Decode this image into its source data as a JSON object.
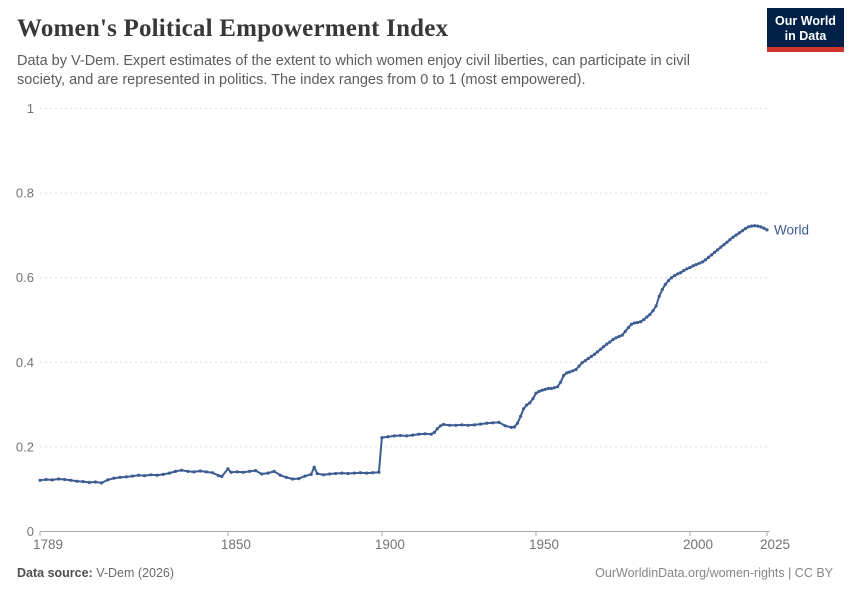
{
  "header": {
    "title": "Women's Political Empowerment Index",
    "subtitle": "Data by V-Dem. Expert estimates of the extent to which women enjoy civil liberties, can participate in civil society, and are represented in politics. The index ranges from 0 to 1 (most empowered).",
    "logo": {
      "line1": "Our World",
      "line2": "in Data"
    }
  },
  "footer": {
    "source_label": "Data source:",
    "source_value": " V-Dem (2026)",
    "attribution": "OurWorldinData.org/women-rights | CC BY"
  },
  "style_colors": {
    "line": "#3d5c92",
    "grid": "#dcdcdc",
    "axis": "#a8a8a8",
    "tick_text": "#737373",
    "logo_bg": "#002147",
    "logo_accent": "#d1342f"
  },
  "chart_data": {
    "type": "line",
    "title": "Women's Political Empowerment Index",
    "xlabel": "",
    "ylabel": "",
    "xlim": [
      1789,
      2025
    ],
    "ylim": [
      0,
      1
    ],
    "x_ticks": [
      1789,
      1850,
      1900,
      1950,
      2000,
      2025
    ],
    "y_ticks": [
      0,
      0.2,
      0.4,
      0.6,
      0.8,
      1
    ],
    "grid": "horizontal-dashed",
    "legend_position": "end-of-line-label",
    "series": [
      {
        "name": "World",
        "points": [
          [
            1789,
            0.121
          ],
          [
            1791,
            0.123
          ],
          [
            1793,
            0.122
          ],
          [
            1795,
            0.124
          ],
          [
            1797,
            0.123
          ],
          [
            1799,
            0.121
          ],
          [
            1801,
            0.119
          ],
          [
            1803,
            0.118
          ],
          [
            1805,
            0.116
          ],
          [
            1807,
            0.117
          ],
          [
            1809,
            0.115
          ],
          [
            1811,
            0.122
          ],
          [
            1813,
            0.126
          ],
          [
            1815,
            0.128
          ],
          [
            1817,
            0.129
          ],
          [
            1819,
            0.131
          ],
          [
            1821,
            0.133
          ],
          [
            1823,
            0.132
          ],
          [
            1825,
            0.134
          ],
          [
            1827,
            0.133
          ],
          [
            1829,
            0.135
          ],
          [
            1831,
            0.138
          ],
          [
            1833,
            0.142
          ],
          [
            1835,
            0.145
          ],
          [
            1837,
            0.142
          ],
          [
            1839,
            0.141
          ],
          [
            1841,
            0.143
          ],
          [
            1843,
            0.141
          ],
          [
            1845,
            0.139
          ],
          [
            1847,
            0.132
          ],
          [
            1848,
            0.13
          ],
          [
            1850,
            0.148
          ],
          [
            1851,
            0.14
          ],
          [
            1853,
            0.141
          ],
          [
            1855,
            0.14
          ],
          [
            1857,
            0.142
          ],
          [
            1859,
            0.144
          ],
          [
            1861,
            0.136
          ],
          [
            1863,
            0.138
          ],
          [
            1865,
            0.142
          ],
          [
            1867,
            0.133
          ],
          [
            1869,
            0.128
          ],
          [
            1871,
            0.124
          ],
          [
            1873,
            0.125
          ],
          [
            1875,
            0.131
          ],
          [
            1877,
            0.135
          ],
          [
            1878,
            0.152
          ],
          [
            1879,
            0.137
          ],
          [
            1881,
            0.134
          ],
          [
            1883,
            0.136
          ],
          [
            1885,
            0.137
          ],
          [
            1887,
            0.138
          ],
          [
            1889,
            0.137
          ],
          [
            1891,
            0.138
          ],
          [
            1893,
            0.139
          ],
          [
            1895,
            0.138
          ],
          [
            1897,
            0.139
          ],
          [
            1899,
            0.14
          ],
          [
            1900,
            0.222
          ],
          [
            1902,
            0.224
          ],
          [
            1904,
            0.226
          ],
          [
            1906,
            0.227
          ],
          [
            1908,
            0.226
          ],
          [
            1910,
            0.228
          ],
          [
            1912,
            0.23
          ],
          [
            1914,
            0.231
          ],
          [
            1916,
            0.23
          ],
          [
            1917,
            0.234
          ],
          [
            1918,
            0.243
          ],
          [
            1919,
            0.25
          ],
          [
            1920,
            0.253
          ],
          [
            1922,
            0.251
          ],
          [
            1924,
            0.251
          ],
          [
            1926,
            0.252
          ],
          [
            1928,
            0.251
          ],
          [
            1930,
            0.252
          ],
          [
            1932,
            0.254
          ],
          [
            1934,
            0.256
          ],
          [
            1936,
            0.257
          ],
          [
            1938,
            0.258
          ],
          [
            1940,
            0.25
          ],
          [
            1942,
            0.246
          ],
          [
            1943,
            0.247
          ],
          [
            1944,
            0.256
          ],
          [
            1945,
            0.272
          ],
          [
            1946,
            0.29
          ],
          [
            1947,
            0.299
          ],
          [
            1948,
            0.304
          ],
          [
            1949,
            0.314
          ],
          [
            1950,
            0.327
          ],
          [
            1951,
            0.331
          ],
          [
            1952,
            0.334
          ],
          [
            1953,
            0.336
          ],
          [
            1954,
            0.338
          ],
          [
            1955,
            0.338
          ],
          [
            1956,
            0.34
          ],
          [
            1957,
            0.342
          ],
          [
            1958,
            0.353
          ],
          [
            1959,
            0.369
          ],
          [
            1960,
            0.375
          ],
          [
            1961,
            0.377
          ],
          [
            1962,
            0.38
          ],
          [
            1963,
            0.383
          ],
          [
            1964,
            0.391
          ],
          [
            1965,
            0.399
          ],
          [
            1966,
            0.404
          ],
          [
            1967,
            0.409
          ],
          [
            1968,
            0.414
          ],
          [
            1969,
            0.419
          ],
          [
            1970,
            0.425
          ],
          [
            1971,
            0.431
          ],
          [
            1972,
            0.437
          ],
          [
            1973,
            0.443
          ],
          [
            1974,
            0.448
          ],
          [
            1975,
            0.454
          ],
          [
            1976,
            0.458
          ],
          [
            1977,
            0.461
          ],
          [
            1978,
            0.464
          ],
          [
            1979,
            0.473
          ],
          [
            1980,
            0.482
          ],
          [
            1981,
            0.49
          ],
          [
            1982,
            0.493
          ],
          [
            1983,
            0.494
          ],
          [
            1984,
            0.496
          ],
          [
            1985,
            0.501
          ],
          [
            1986,
            0.507
          ],
          [
            1987,
            0.513
          ],
          [
            1988,
            0.522
          ],
          [
            1989,
            0.533
          ],
          [
            1990,
            0.556
          ],
          [
            1991,
            0.572
          ],
          [
            1992,
            0.584
          ],
          [
            1993,
            0.593
          ],
          [
            1994,
            0.6
          ],
          [
            1995,
            0.605
          ],
          [
            1996,
            0.609
          ],
          [
            1997,
            0.612
          ],
          [
            1998,
            0.617
          ],
          [
            1999,
            0.621
          ],
          [
            2000,
            0.624
          ],
          [
            2001,
            0.628
          ],
          [
            2002,
            0.631
          ],
          [
            2003,
            0.634
          ],
          [
            2004,
            0.637
          ],
          [
            2005,
            0.642
          ],
          [
            2006,
            0.648
          ],
          [
            2007,
            0.654
          ],
          [
            2008,
            0.66
          ],
          [
            2009,
            0.666
          ],
          [
            2010,
            0.672
          ],
          [
            2011,
            0.678
          ],
          [
            2012,
            0.684
          ],
          [
            2013,
            0.69
          ],
          [
            2014,
            0.696
          ],
          [
            2015,
            0.701
          ],
          [
            2016,
            0.706
          ],
          [
            2017,
            0.711
          ],
          [
            2018,
            0.716
          ],
          [
            2019,
            0.72
          ],
          [
            2020,
            0.722
          ],
          [
            2021,
            0.723
          ],
          [
            2022,
            0.722
          ],
          [
            2023,
            0.72
          ],
          [
            2024,
            0.717
          ],
          [
            2025,
            0.713
          ]
        ]
      }
    ]
  }
}
